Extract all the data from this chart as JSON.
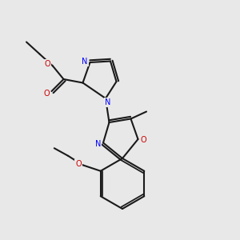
{
  "background_color": "#e8e8e8",
  "line_color": "#1a1a1a",
  "n_color": "#0000ff",
  "o_color": "#cc0000",
  "bond_lw": 1.5,
  "figsize": [
    3.0,
    3.0
  ],
  "dpi": 100,
  "xlim": [
    0,
    10
  ],
  "ylim": [
    0,
    10
  ],
  "font_size": 7.0
}
